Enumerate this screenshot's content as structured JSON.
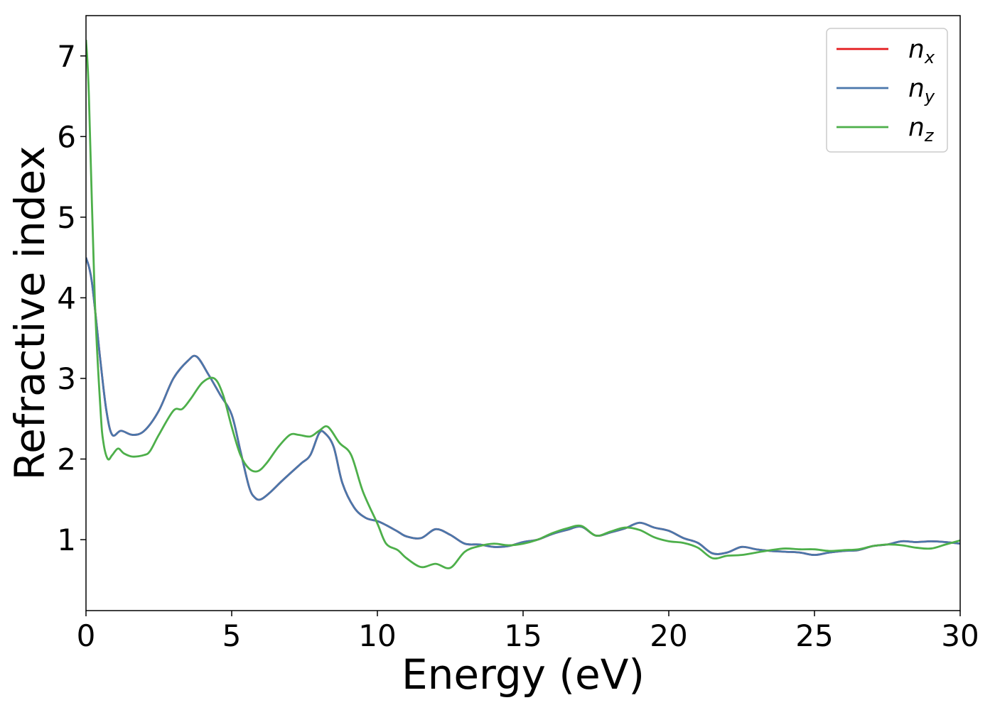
{
  "chart_data": {
    "type": "line",
    "xlabel": "Energy (eV)",
    "ylabel": "Refractive index",
    "xlim": [
      0,
      30
    ],
    "ylim": [
      0.12,
      7.5
    ],
    "xticks": [
      0,
      5,
      10,
      15,
      20,
      25,
      30
    ],
    "yticks": [
      1,
      2,
      3,
      4,
      5,
      6,
      7
    ],
    "grid": false,
    "legend_position": "top-right",
    "series": [
      {
        "name": "n_x",
        "label_main": "n",
        "label_sub": "x",
        "color": "#e41a1c",
        "x": [
          0,
          0.2,
          0.5,
          0.7,
          0.9,
          1.2,
          1.6,
          2.0,
          2.5,
          3.0,
          3.5,
          3.8,
          4.2,
          4.6,
          5.0,
          5.3,
          5.6,
          5.8,
          6.0,
          6.3,
          6.7,
          7.0,
          7.4,
          7.7,
          8.0,
          8.2,
          8.5,
          8.8,
          9.2,
          9.6,
          10.0,
          10.3,
          10.7,
          11.0,
          11.5,
          12.0,
          12.5,
          13.0,
          13.5,
          14.0,
          14.5,
          15.0,
          15.5,
          16.0,
          16.5,
          17.0,
          17.5,
          18.0,
          18.5,
          19.0,
          19.5,
          20.0,
          20.5,
          21.0,
          21.5,
          22.0,
          22.5,
          23.0,
          23.5,
          24.0,
          24.5,
          25.0,
          25.5,
          26.0,
          26.5,
          27.0,
          27.5,
          28.0,
          28.5,
          29.0,
          29.5,
          30.0
        ],
        "y": [
          4.5,
          4.2,
          3.2,
          2.6,
          2.3,
          2.35,
          2.3,
          2.35,
          2.6,
          3.0,
          3.22,
          3.27,
          3.05,
          2.8,
          2.55,
          2.1,
          1.65,
          1.52,
          1.5,
          1.58,
          1.72,
          1.82,
          1.95,
          2.05,
          2.32,
          2.32,
          2.15,
          1.7,
          1.4,
          1.27,
          1.23,
          1.18,
          1.1,
          1.04,
          1.02,
          1.13,
          1.06,
          0.95,
          0.94,
          0.91,
          0.92,
          0.97,
          1.0,
          1.07,
          1.12,
          1.16,
          1.05,
          1.09,
          1.14,
          1.21,
          1.15,
          1.11,
          1.02,
          0.96,
          0.83,
          0.84,
          0.91,
          0.88,
          0.86,
          0.85,
          0.84,
          0.81,
          0.84,
          0.86,
          0.87,
          0.92,
          0.94,
          0.98,
          0.97,
          0.98,
          0.97,
          0.95
        ]
      },
      {
        "name": "n_y",
        "label_main": "n",
        "label_sub": "y",
        "color": "#4a77ab",
        "x": [
          0,
          0.2,
          0.5,
          0.7,
          0.9,
          1.2,
          1.6,
          2.0,
          2.5,
          3.0,
          3.5,
          3.8,
          4.2,
          4.6,
          5.0,
          5.3,
          5.6,
          5.8,
          6.0,
          6.3,
          6.7,
          7.0,
          7.4,
          7.7,
          8.0,
          8.2,
          8.5,
          8.8,
          9.2,
          9.6,
          10.0,
          10.3,
          10.7,
          11.0,
          11.5,
          12.0,
          12.5,
          13.0,
          13.5,
          14.0,
          14.5,
          15.0,
          15.5,
          16.0,
          16.5,
          17.0,
          17.5,
          18.0,
          18.5,
          19.0,
          19.5,
          20.0,
          20.5,
          21.0,
          21.5,
          22.0,
          22.5,
          23.0,
          23.5,
          24.0,
          24.5,
          25.0,
          25.5,
          26.0,
          26.5,
          27.0,
          27.5,
          28.0,
          28.5,
          29.0,
          29.5,
          30.0
        ],
        "y": [
          4.5,
          4.2,
          3.2,
          2.6,
          2.3,
          2.35,
          2.3,
          2.35,
          2.6,
          3.0,
          3.22,
          3.27,
          3.05,
          2.8,
          2.55,
          2.1,
          1.65,
          1.52,
          1.5,
          1.58,
          1.72,
          1.82,
          1.95,
          2.05,
          2.32,
          2.32,
          2.15,
          1.7,
          1.4,
          1.27,
          1.23,
          1.18,
          1.1,
          1.04,
          1.02,
          1.13,
          1.06,
          0.95,
          0.94,
          0.91,
          0.92,
          0.97,
          1.0,
          1.07,
          1.12,
          1.16,
          1.05,
          1.09,
          1.14,
          1.21,
          1.15,
          1.11,
          1.02,
          0.96,
          0.83,
          0.84,
          0.91,
          0.88,
          0.86,
          0.85,
          0.84,
          0.81,
          0.84,
          0.86,
          0.87,
          0.92,
          0.94,
          0.98,
          0.97,
          0.98,
          0.97,
          0.95
        ]
      },
      {
        "name": "n_z",
        "label_main": "n",
        "label_sub": "z",
        "color": "#4daf4a",
        "x": [
          0,
          0.1,
          0.3,
          0.5,
          0.6,
          0.75,
          0.9,
          1.1,
          1.3,
          1.6,
          2.0,
          2.2,
          2.5,
          3.0,
          3.3,
          3.6,
          4.0,
          4.4,
          4.7,
          5.0,
          5.3,
          5.6,
          5.9,
          6.2,
          6.6,
          7.0,
          7.3,
          7.7,
          8.0,
          8.3,
          8.7,
          9.1,
          9.5,
          10.0,
          10.3,
          10.7,
          11.0,
          11.5,
          12.0,
          12.5,
          13.0,
          13.5,
          14.0,
          14.5,
          15.0,
          15.5,
          16.0,
          16.5,
          17.0,
          17.5,
          18.0,
          18.5,
          19.0,
          19.5,
          20.0,
          20.5,
          21.0,
          21.5,
          22.0,
          22.5,
          23.0,
          23.5,
          24.0,
          24.5,
          25.0,
          25.5,
          26.0,
          26.5,
          27.0,
          27.5,
          28.0,
          28.5,
          29.0,
          29.5,
          30.0
        ],
        "y": [
          7.2,
          6.5,
          4.0,
          2.6,
          2.2,
          2.0,
          2.05,
          2.13,
          2.07,
          2.03,
          2.05,
          2.1,
          2.3,
          2.6,
          2.62,
          2.75,
          2.95,
          3.0,
          2.8,
          2.4,
          2.05,
          1.88,
          1.85,
          1.95,
          2.15,
          2.3,
          2.3,
          2.28,
          2.35,
          2.4,
          2.2,
          2.05,
          1.6,
          1.2,
          0.95,
          0.87,
          0.77,
          0.66,
          0.7,
          0.65,
          0.85,
          0.92,
          0.95,
          0.93,
          0.95,
          1.0,
          1.08,
          1.14,
          1.17,
          1.05,
          1.1,
          1.15,
          1.12,
          1.03,
          0.98,
          0.96,
          0.9,
          0.77,
          0.8,
          0.81,
          0.84,
          0.87,
          0.89,
          0.88,
          0.88,
          0.86,
          0.87,
          0.88,
          0.92,
          0.94,
          0.93,
          0.9,
          0.89,
          0.94,
          0.99
        ]
      }
    ]
  }
}
